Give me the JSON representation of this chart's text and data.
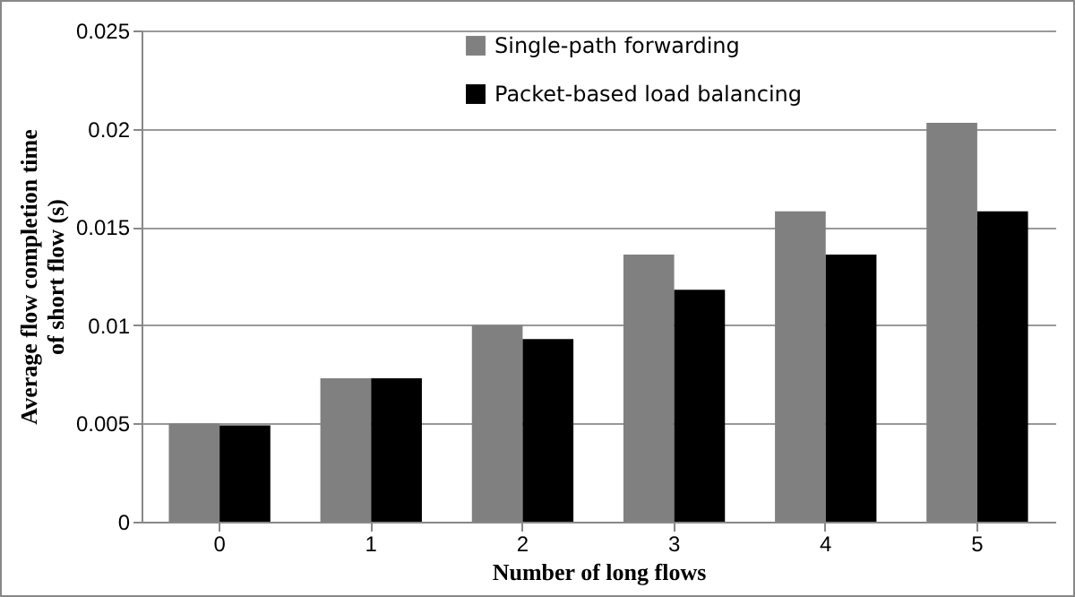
{
  "chart_data": {
    "type": "bar",
    "xlabel": "Number of long flows",
    "ylabel": "Average flow completion time of short flow (s)",
    "categories": [
      "0",
      "1",
      "2",
      "3",
      "4",
      "5"
    ],
    "series": [
      {
        "name": "Single-path forwarding",
        "color": "#808080",
        "values": [
          0.005,
          0.0073,
          0.01,
          0.0136,
          0.0158,
          0.0203
        ]
      },
      {
        "name": "Packet-based load balancing",
        "color": "#000000",
        "values": [
          0.0049,
          0.0073,
          0.0093,
          0.0118,
          0.0136,
          0.0158
        ]
      }
    ],
    "ylim": [
      0,
      0.025
    ],
    "yticks": [
      0,
      0.005,
      0.01,
      0.015,
      0.02,
      0.025
    ],
    "grid": "y",
    "legend": "top"
  }
}
